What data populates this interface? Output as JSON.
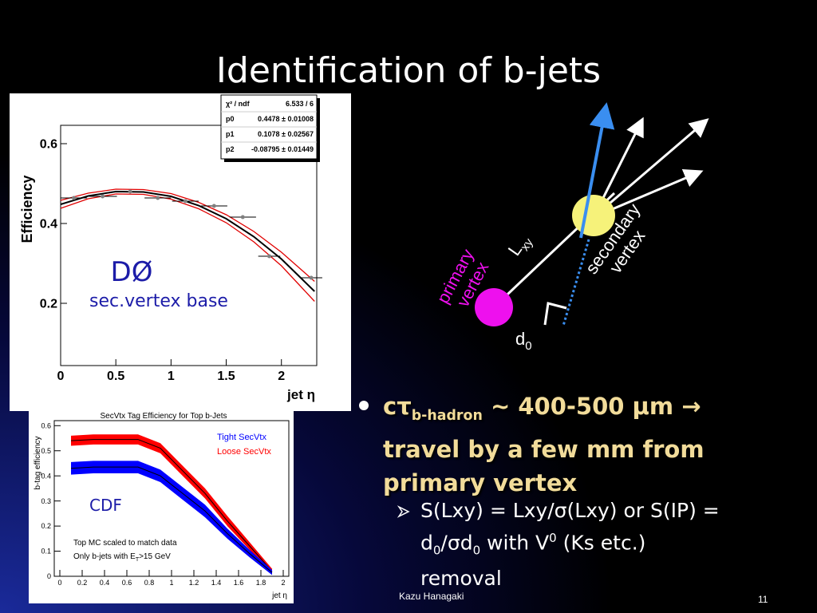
{
  "title": "Identification of b-jets",
  "chart_data": [
    {
      "type": "scatter",
      "ylabel": "Efficiency",
      "xlabel": "jet η",
      "annotations": [
        "DØ",
        "sec.vertex base"
      ],
      "xlim": [
        0,
        2.32
      ],
      "ylim": [
        0.044,
        0.646
      ],
      "xticks": [
        0,
        0.5,
        1,
        1.5,
        2
      ],
      "yticks": [
        0.2,
        0.4,
        0.6
      ],
      "x": [
        0.12,
        0.38,
        0.63,
        0.88,
        1.13,
        1.39,
        1.65,
        1.89,
        2.27
      ],
      "series": [
        {
          "color": "#808080",
          "values": [
            0.464,
            0.468,
            0.48,
            0.464,
            0.456,
            0.444,
            0.416,
            0.318,
            0.264
          ],
          "x_errors": [
            0.12,
            0.13,
            0.12,
            0.12,
            0.12,
            0.12,
            0.12,
            0.1,
            0.1
          ]
        }
      ],
      "fit": {
        "color": "#000000",
        "x": [
          0,
          0.25,
          0.5,
          0.75,
          1,
          1.25,
          1.5,
          1.75,
          2,
          2.3
        ],
        "values": [
          0.448,
          0.469,
          0.48,
          0.479,
          0.468,
          0.445,
          0.412,
          0.367,
          0.311,
          0.23
        ]
      },
      "fit_band": {
        "color": "#e00000",
        "lower": [
          0.438,
          0.462,
          0.474,
          0.473,
          0.461,
          0.437,
          0.402,
          0.354,
          0.294,
          0.205
        ],
        "upper": [
          0.458,
          0.476,
          0.486,
          0.485,
          0.475,
          0.453,
          0.422,
          0.38,
          0.328,
          0.255
        ]
      },
      "stats": [
        [
          "χ² / ndf",
          "6.533 / 6"
        ],
        [
          "p0",
          "0.4478 ± 0.01008"
        ],
        [
          "p1",
          "0.1078 ± 0.02567"
        ],
        [
          "p2",
          "-0.08795 ± 0.01449"
        ]
      ]
    },
    {
      "type": "band",
      "title": "SecVtx Tag Efficiency for Top b-Jets",
      "ylabel": "b-tag efficiency",
      "xlabel": "jet η",
      "annotations": [
        "CDF",
        "Top MC scaled to match data"
      ],
      "note": [
        "Only b-jets with E",
        "T",
        ">15 GeV"
      ],
      "xlim": [
        -0.05,
        2.05
      ],
      "ylim": [
        0,
        0.62
      ],
      "xticks": [
        0,
        0.2,
        0.4,
        0.6,
        0.8,
        1,
        1.2,
        1.4,
        1.6,
        1.8,
        2
      ],
      "yticks": [
        0,
        0.1,
        0.2,
        0.3,
        0.4,
        0.5,
        0.6
      ],
      "x": [
        0.1,
        0.3,
        0.5,
        0.7,
        0.9,
        1.1,
        1.3,
        1.5,
        1.7,
        1.9
      ],
      "series": [
        {
          "name": "Tight SecVtx",
          "color": "#0000ff",
          "values": [
            0.43,
            0.435,
            0.435,
            0.435,
            0.4,
            0.33,
            0.26,
            0.17,
            0.09,
            0.015
          ],
          "errors": [
            0.025,
            0.025,
            0.025,
            0.025,
            0.025,
            0.025,
            0.025,
            0.02,
            0.015,
            0.01
          ]
        },
        {
          "name": "Loose SecVtx",
          "color": "#ff0000",
          "values": [
            0.54,
            0.545,
            0.545,
            0.545,
            0.51,
            0.42,
            0.33,
            0.22,
            0.12,
            0.02
          ],
          "errors": [
            0.02,
            0.02,
            0.02,
            0.02,
            0.02,
            0.02,
            0.02,
            0.02,
            0.015,
            0.01
          ]
        }
      ]
    }
  ],
  "diagram": {
    "primary": [
      "primary",
      "vertex"
    ],
    "secondary": [
      "secondary",
      "vertex"
    ],
    "lxy": [
      "L",
      "xy"
    ],
    "d0": [
      "d",
      "0"
    ]
  },
  "bullets": {
    "main": [
      "cτ",
      "b-hadron",
      " ~ 400-500 μm → travel by a few mm from primary vertex"
    ],
    "sub": [
      "S(Lxy) = Lxy/σ(Lxy) or S(IP) = d",
      "0",
      "/σd",
      "0",
      " with V",
      "0",
      " (Ks etc.) removal"
    ]
  },
  "footer": {
    "author": "Kazu Hanagaki",
    "page": "11"
  }
}
